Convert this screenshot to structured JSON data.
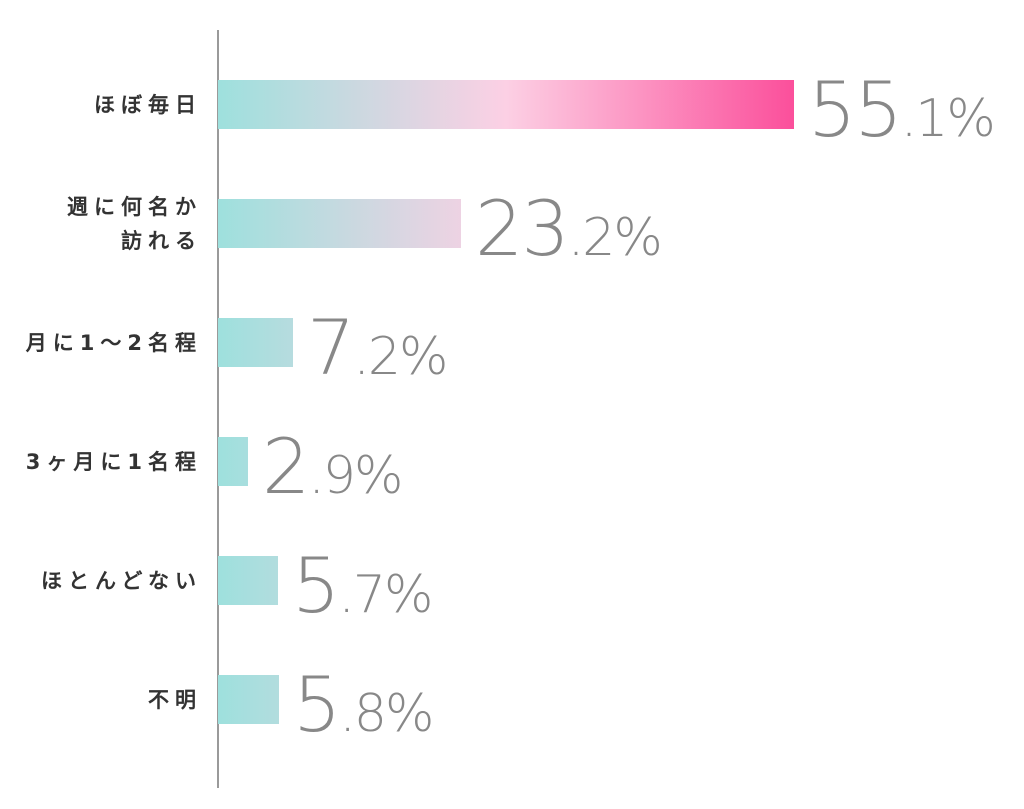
{
  "chart_data": {
    "type": "bar",
    "orientation": "horizontal",
    "categories": [
      "ほぼ毎日",
      "週に何名か\n訪れる",
      "月に1〜2名程",
      "3ヶ月に1名程",
      "ほとんどない",
      "不明"
    ],
    "values": [
      55.1,
      23.2,
      7.2,
      2.9,
      5.7,
      5.8
    ],
    "value_labels": [
      {
        "int": "55",
        "dec": ".1%"
      },
      {
        "int": "23",
        "dec": ".2%"
      },
      {
        "int": "7",
        "dec": ".2%"
      },
      {
        "int": "2",
        "dec": ".9%"
      },
      {
        "int": "5",
        "dec": ".7%"
      },
      {
        "int": "5",
        "dec": ".8%"
      }
    ],
    "unit": "%",
    "xlim": [
      0,
      55.1
    ],
    "grid": false,
    "legend": "none"
  },
  "colors": {
    "bar_start": "#9ee0dd",
    "bar_mid": "#fcd0e4",
    "bar_end": "#fb4f9b",
    "label_text": "#333333",
    "value_text": "#888888",
    "axis": "#9a9a9a"
  }
}
